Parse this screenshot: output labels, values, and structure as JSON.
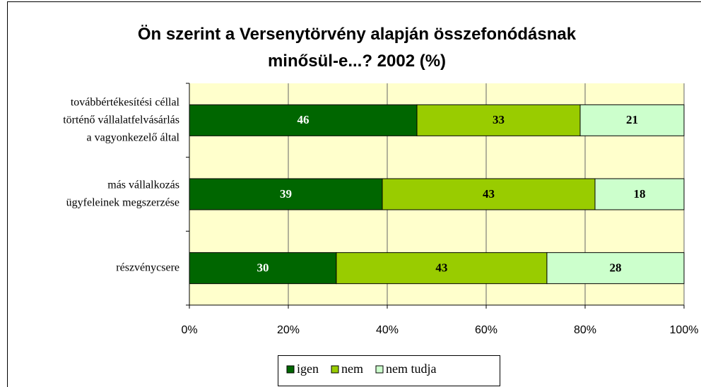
{
  "chart_data": {
    "type": "bar",
    "orientation": "horizontal",
    "stacked": "percent",
    "title": "Ön szerint a Versenytörvény alapján összefonódásnak\nminősül-e...? 2002 (%)",
    "categories": [
      "továbbértékesítési céllal\ntörténő vállalatfelvásárlás\na vagyonkezelő által",
      "más vállalkozás\nügyfeleinek megszerzése",
      "részvénycsere"
    ],
    "series": [
      {
        "name": "igen",
        "color": "#006600",
        "values": [
          46,
          39,
          30
        ]
      },
      {
        "name": "nem",
        "color": "#99cc00",
        "values": [
          33,
          43,
          43
        ]
      },
      {
        "name": "nem tudja",
        "color": "#ccffcc",
        "values": [
          21,
          18,
          28
        ]
      }
    ],
    "xlim": [
      0,
      100
    ],
    "xticks": [
      {
        "value": 0,
        "label": "0%"
      },
      {
        "value": 20,
        "label": "20%"
      },
      {
        "value": 40,
        "label": "40%"
      },
      {
        "value": 60,
        "label": "60%"
      },
      {
        "value": 80,
        "label": "80%"
      },
      {
        "value": 100,
        "label": "100%"
      }
    ],
    "grid": true,
    "legend": "bottom"
  }
}
